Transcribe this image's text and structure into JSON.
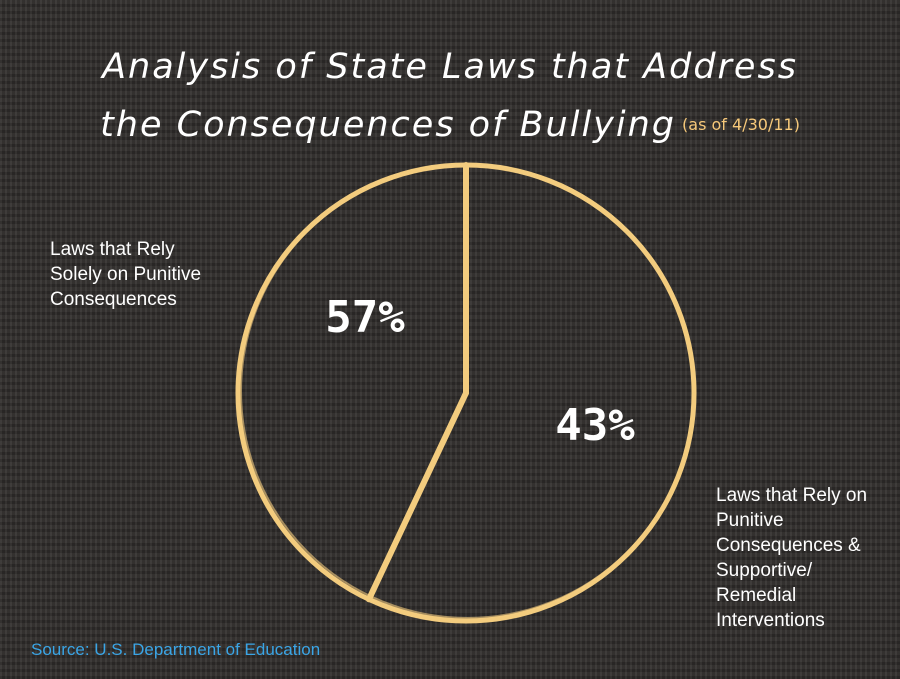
{
  "title": {
    "line1": "Analysis of State Laws that Address",
    "line2": "the Consequences of Bullying",
    "date_note": "(as of 4/30/11)"
  },
  "source": "Source: U.S. Department of Education",
  "colors": {
    "outline": "#f3cc7e",
    "background": "#302d2b",
    "source": "#3aa5e6",
    "date_note": "#f7c97a"
  },
  "chart_data": {
    "type": "pie",
    "slices": [
      {
        "label": "Laws that Rely Solely on Punitive Consequences",
        "value": 57,
        "display": "57%"
      },
      {
        "label": "Laws that Rely on Punitive Consequences & Supportive/ Remedial Interventions",
        "value": 43,
        "display": "43%"
      }
    ],
    "unit": "%"
  }
}
